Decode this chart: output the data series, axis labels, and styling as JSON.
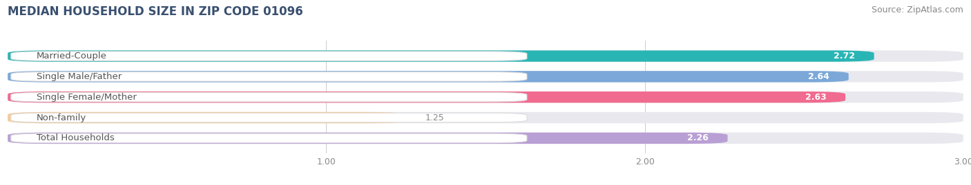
{
  "title": "MEDIAN HOUSEHOLD SIZE IN ZIP CODE 01096",
  "source": "Source: ZipAtlas.com",
  "categories": [
    "Married-Couple",
    "Single Male/Father",
    "Single Female/Mother",
    "Non-family",
    "Total Households"
  ],
  "values": [
    2.72,
    2.64,
    2.63,
    1.25,
    2.26
  ],
  "bar_colors": [
    "#2ab5b5",
    "#7ba8d8",
    "#f06b8f",
    "#f5ca9a",
    "#b89fd4"
  ],
  "bar_bg_color": "#e8e8ee",
  "xlim_start": 0.0,
  "xlim_end": 3.0,
  "xticks": [
    1.0,
    2.0,
    3.0
  ],
  "xtick_labels": [
    "1.00",
    "2.00",
    "3.00"
  ],
  "value_label_color_inside": "#ffffff",
  "value_label_color_outside": "#888888",
  "category_fontsize": 9.5,
  "category_color": "#555555",
  "title_fontsize": 12,
  "title_color": "#3a5070",
  "source_fontsize": 9,
  "source_color": "#888888",
  "bar_height": 0.55,
  "figsize": [
    14.06,
    2.69
  ],
  "dpi": 100
}
